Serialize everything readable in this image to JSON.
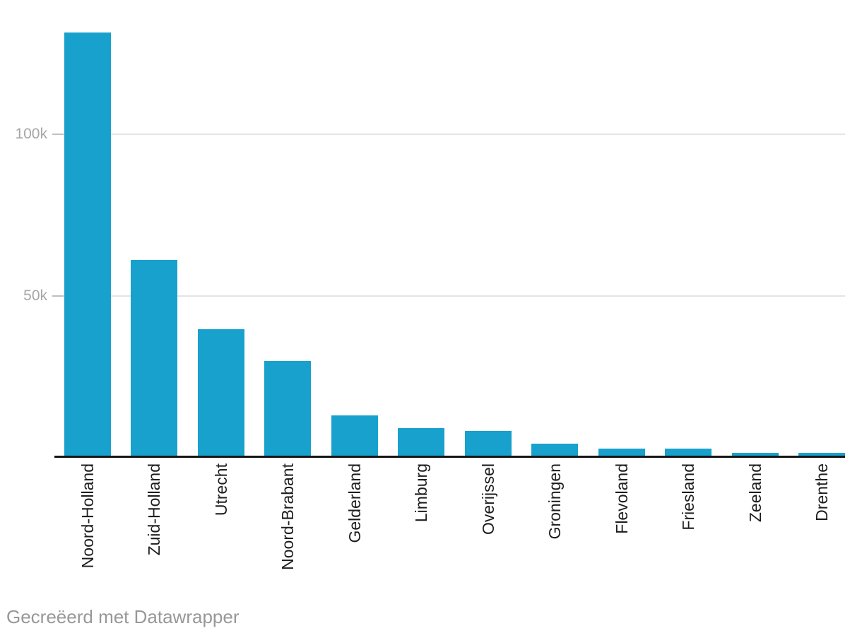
{
  "chart_data": {
    "type": "bar",
    "title": "",
    "xlabel": "",
    "ylabel": "",
    "categories": [
      "Noord-Holland",
      "Zuid-Holland",
      "Utrecht",
      "Noord-Brabant",
      "Gelderland",
      "Limburg",
      "Overijssel",
      "Groningen",
      "Flevoland",
      "Friesland",
      "Zeeland",
      "Drenthe"
    ],
    "values": [
      131000,
      60700,
      39300,
      29400,
      12700,
      8700,
      7900,
      3900,
      2500,
      2400,
      1200,
      1100
    ],
    "ylim": [
      0,
      141000
    ],
    "yticks": [
      {
        "value": 50000,
        "label": "50k"
      },
      {
        "value": 100000,
        "label": "100k"
      }
    ],
    "grid": true,
    "legend": false,
    "bar_color": "#18a1cd"
  },
  "footer": {
    "credit": "Gecreëerd met Datawrapper"
  }
}
